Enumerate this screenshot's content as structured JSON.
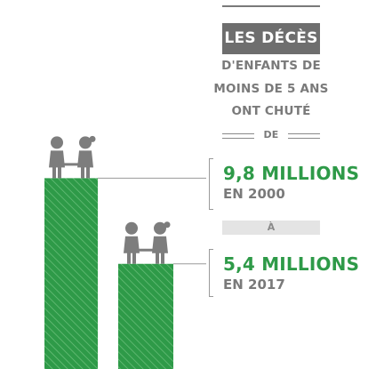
{
  "title": {
    "heading": "LES DÉCÈS",
    "line1": "D'ENFANTS DE",
    "line2": "MOINS DE 5 ANS",
    "line3": "ONT CHUTÉ",
    "from_word": "DE",
    "to_word": "À"
  },
  "colors": {
    "bar": "#2e9a48",
    "figure": "#7d7d7d",
    "text": "#7a7a7a",
    "value": "#2e9a48"
  },
  "chart_data": {
    "type": "bar",
    "categories": [
      "2000",
      "2017"
    ],
    "values": [
      9.8,
      5.4
    ],
    "unit": "millions",
    "ylim": [
      0,
      10
    ],
    "value_labels": [
      {
        "value_text": "9,8 MILLIONS",
        "year_text": "EN 2000"
      },
      {
        "value_text": "5,4 MILLIONS",
        "year_text": "EN 2017"
      }
    ],
    "icons": [
      "child-pair-icon",
      "child-pair-icon"
    ]
  }
}
